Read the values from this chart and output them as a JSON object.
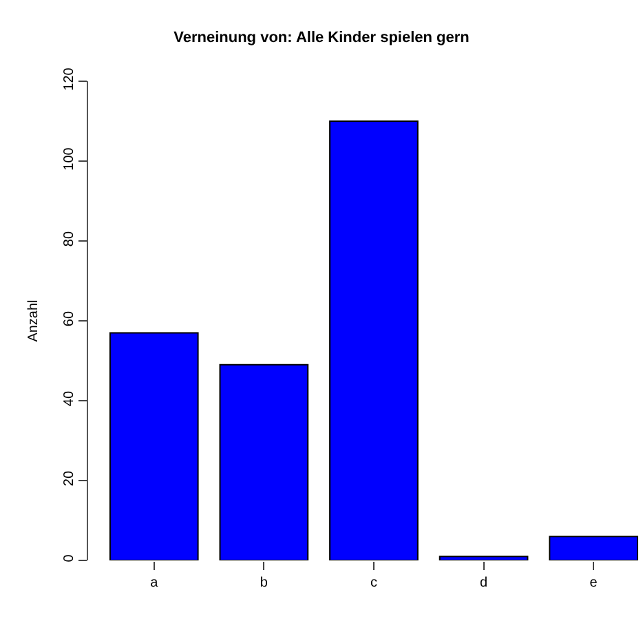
{
  "chart_data": {
    "type": "bar",
    "title": "Verneinung von: Alle Kinder spielen gern",
    "ylabel": "Anzahl",
    "categories": [
      "a",
      "b",
      "c",
      "d",
      "e"
    ],
    "values": [
      57,
      49,
      110,
      1,
      6
    ],
    "color": "#0000ff",
    "ylim": [
      0,
      120
    ],
    "yticks": [
      0,
      20,
      40,
      60,
      80,
      100,
      120
    ]
  }
}
